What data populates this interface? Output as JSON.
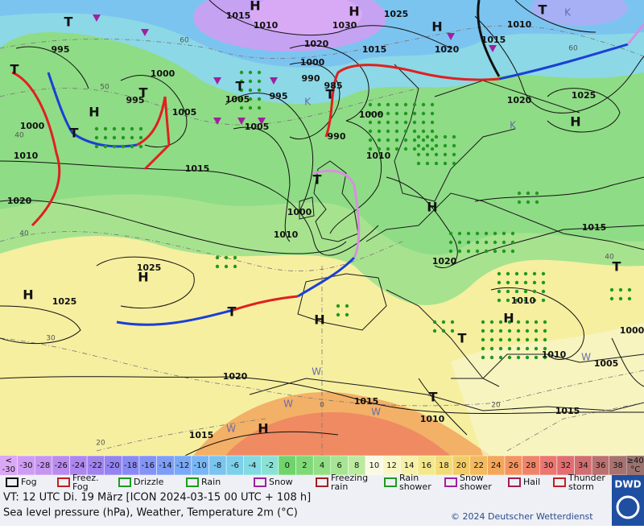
{
  "map": {
    "isobar_labels": [
      1015,
      1010,
      1030,
      1025,
      1020,
      1015,
      1000,
      990,
      985,
      1005,
      995,
      1005,
      990,
      1000,
      1010,
      1015,
      1000,
      1010,
      1020,
      1010,
      1000,
      995,
      1000,
      1005,
      995,
      1025,
      1025,
      1020,
      1015,
      1015,
      1010,
      1015,
      1020,
      1015,
      1010,
      1010,
      1005,
      1000,
      1020,
      1015,
      1010,
      1020,
      1025
    ],
    "centers": [
      "H",
      "H",
      "T",
      "T",
      "H",
      "T",
      "T",
      "T",
      "H",
      "T",
      "H",
      "T",
      "H",
      "H",
      "H",
      "T",
      "H",
      "T",
      "H",
      "T",
      "T",
      "T",
      "H"
    ],
    "isotherm_labels": [
      60,
      50,
      40,
      40,
      30,
      20,
      0,
      20,
      40,
      60
    ],
    "air_mass_labels": [
      "K",
      "K",
      "K",
      "W",
      "W",
      "W",
      "W",
      "W"
    ]
  },
  "temperature_scale": {
    "below_label": [
      "<",
      "-30"
    ],
    "items": [
      {
        "label": "-30",
        "color": "#cf9cf3"
      },
      {
        "label": "-28",
        "color": "#c595f0"
      },
      {
        "label": "-26",
        "color": "#b98cee"
      },
      {
        "label": "-24",
        "color": "#ad86ef"
      },
      {
        "label": "-22",
        "color": "#a083ee"
      },
      {
        "label": "-20",
        "color": "#9484f2"
      },
      {
        "label": "-18",
        "color": "#8a8af4"
      },
      {
        "label": "-16",
        "color": "#8393f6"
      },
      {
        "label": "-14",
        "color": "#7d9df7"
      },
      {
        "label": "-12",
        "color": "#7aa9f6"
      },
      {
        "label": "-10",
        "color": "#79b6f4"
      },
      {
        "label": "-8",
        "color": "#7ac4f0"
      },
      {
        "label": "-6",
        "color": "#7cd0ea"
      },
      {
        "label": "-4",
        "color": "#82dae2"
      },
      {
        "label": "-2",
        "color": "#8ae2d6"
      },
      {
        "label": "0",
        "color": "#6fd46c"
      },
      {
        "label": "2",
        "color": "#7fd977"
      },
      {
        "label": "4",
        "color": "#92df84"
      },
      {
        "label": "6",
        "color": "#a6e592"
      },
      {
        "label": "8",
        "color": "#bceb9f"
      },
      {
        "label": "10",
        "color": "#fafae4"
      },
      {
        "label": "12",
        "color": "#f8f6c4"
      },
      {
        "label": "14",
        "color": "#f6f0a8"
      },
      {
        "label": "16",
        "color": "#f4e88c"
      },
      {
        "label": "18",
        "color": "#f3dc78"
      },
      {
        "label": "20",
        "color": "#f4cc66"
      },
      {
        "label": "22",
        "color": "#f4ba5e"
      },
      {
        "label": "24",
        "color": "#f4a65a"
      },
      {
        "label": "26",
        "color": "#f39460"
      },
      {
        "label": "28",
        "color": "#f08468"
      },
      {
        "label": "30",
        "color": "#ec7670"
      },
      {
        "label": "32",
        "color": "#e26e72"
      },
      {
        "label": "34",
        "color": "#d06e70"
      },
      {
        "label": "36",
        "color": "#bc7070"
      },
      {
        "label": "38",
        "color": "#a87270"
      }
    ],
    "above_label": [
      "≥40",
      "°C"
    ]
  },
  "weather_legend": [
    {
      "lines": [
        "Fog"
      ]
    },
    {
      "lines": [
        "Freez.",
        "Fog"
      ]
    },
    {
      "lines": [
        "Drizzle"
      ]
    },
    {
      "lines": [
        "Rain"
      ]
    },
    {
      "lines": [
        "Snow"
      ]
    },
    {
      "lines": [
        "Freezing",
        "rain"
      ]
    },
    {
      "lines": [
        "Rain",
        "shower"
      ]
    },
    {
      "lines": [
        "Snow",
        "shower"
      ]
    },
    {
      "lines": [
        "Hail"
      ]
    },
    {
      "lines": [
        "Thunder",
        "storm"
      ]
    }
  ],
  "footer": {
    "valid_time": "VT: 12 UTC Di.  19 März [ICON 2024-03-15  00 UTC + 108 h]",
    "description": "Sea level pressure (hPa), Weather, Temperature 2m (°C)",
    "copyright": "© 2024 Deutscher Wetterdienst",
    "logo": "DWD"
  }
}
